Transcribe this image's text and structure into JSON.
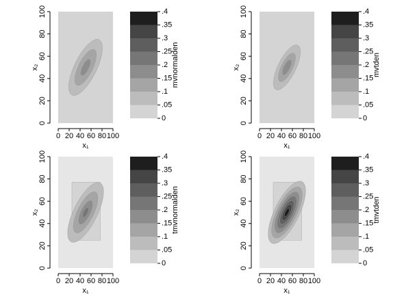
{
  "chart_data": [
    {
      "type": "contour",
      "xlabel": "x₁",
      "ylabel": "x₂",
      "zlabel": "mvnormalden",
      "xlim": [
        0,
        100
      ],
      "ylim": [
        0,
        100
      ],
      "xticks": [
        0,
        20,
        40,
        60,
        80,
        100
      ],
      "yticks": [
        0,
        20,
        40,
        60,
        80,
        100
      ],
      "zlim": [
        0,
        0.4
      ],
      "zticks": [
        0,
        {
          "value": 0.05,
          "label": ".05"
        },
        {
          "value": 0.1,
          "label": ".1"
        },
        {
          "value": 0.15,
          "label": ".15"
        },
        {
          "value": 0.2,
          "label": ".2"
        },
        {
          "value": 0.25,
          "label": ".25"
        },
        {
          "value": 0.3,
          "label": ".3"
        },
        {
          "value": 0.35,
          "label": ".35"
        },
        {
          "value": 0.4,
          "label": ".4"
        }
      ],
      "colors": [
        "#d4d4d4",
        "#bcbcbc",
        "#a5a5a5",
        "#8d8d8d",
        "#767676",
        "#5e5e5e",
        "#454545",
        "#1e1e1e"
      ]
    },
    {
      "type": "contour",
      "xlabel": "x₁",
      "ylabel": "x₂",
      "zlabel": "mvtden",
      "xlim": [
        0,
        100
      ],
      "ylim": [
        0,
        100
      ],
      "xticks": [
        0,
        20,
        40,
        60,
        80,
        100
      ],
      "yticks": [
        0,
        20,
        40,
        60,
        80,
        100
      ],
      "zlim": [
        0,
        0.4
      ],
      "zticks": [
        0,
        {
          "value": 0.05,
          "label": ".05"
        },
        {
          "value": 0.1,
          "label": ".1"
        },
        {
          "value": 0.15,
          "label": ".15"
        },
        {
          "value": 0.2,
          "label": ".2"
        },
        {
          "value": 0.25,
          "label": ".25"
        },
        {
          "value": 0.3,
          "label": ".3"
        },
        {
          "value": 0.35,
          "label": ".35"
        },
        {
          "value": 0.4,
          "label": ".4"
        }
      ],
      "colors": [
        "#d4d4d4",
        "#bcbcbc",
        "#a5a5a5",
        "#8d8d8d",
        "#767676",
        "#5e5e5e",
        "#454545",
        "#1e1e1e"
      ]
    },
    {
      "type": "contour",
      "xlabel": "x₁",
      "ylabel": "x₂",
      "zlabel": "tmvnormalden",
      "xlim": [
        0,
        100
      ],
      "ylim": [
        0,
        100
      ],
      "xticks": [
        0,
        20,
        40,
        60,
        80,
        100
      ],
      "yticks": [
        0,
        20,
        40,
        60,
        80,
        100
      ],
      "zlim": [
        0,
        0.4
      ],
      "zticks": [
        0,
        {
          "value": 0.05,
          "label": ".05"
        },
        {
          "value": 0.1,
          "label": ".1"
        },
        {
          "value": 0.15,
          "label": ".15"
        },
        {
          "value": 0.2,
          "label": ".2"
        },
        {
          "value": 0.25,
          "label": ".25"
        },
        {
          "value": 0.3,
          "label": ".3"
        },
        {
          "value": 0.35,
          "label": ".35"
        },
        {
          "value": 0.4,
          "label": ".4"
        }
      ],
      "colors": [
        "#d4d4d4",
        "#bcbcbc",
        "#a5a5a5",
        "#8d8d8d",
        "#767676",
        "#5e5e5e",
        "#454545",
        "#1e1e1e"
      ],
      "truncation": {
        "x": [
          25,
          77
        ],
        "y": [
          25,
          77
        ]
      }
    },
    {
      "type": "contour",
      "xlabel": "x₁",
      "ylabel": "x₂",
      "zlabel": "tmvtden",
      "xlim": [
        0,
        100
      ],
      "ylim": [
        0,
        100
      ],
      "xticks": [
        0,
        20,
        40,
        60,
        80,
        100
      ],
      "yticks": [
        0,
        20,
        40,
        60,
        80,
        100
      ],
      "zlim": [
        0,
        0.4
      ],
      "zticks": [
        0,
        {
          "value": 0.05,
          "label": ".05"
        },
        {
          "value": 0.1,
          "label": ".1"
        },
        {
          "value": 0.15,
          "label": ".15"
        },
        {
          "value": 0.2,
          "label": ".2"
        },
        {
          "value": 0.25,
          "label": ".25"
        },
        {
          "value": 0.3,
          "label": ".3"
        },
        {
          "value": 0.35,
          "label": ".35"
        },
        {
          "value": 0.4,
          "label": ".4"
        }
      ],
      "colors": [
        "#d4d4d4",
        "#bcbcbc",
        "#a5a5a5",
        "#8d8d8d",
        "#767676",
        "#5e5e5e",
        "#454545",
        "#1e1e1e"
      ],
      "truncation": {
        "x": [
          25,
          77
        ],
        "y": [
          25,
          77
        ]
      }
    }
  ]
}
